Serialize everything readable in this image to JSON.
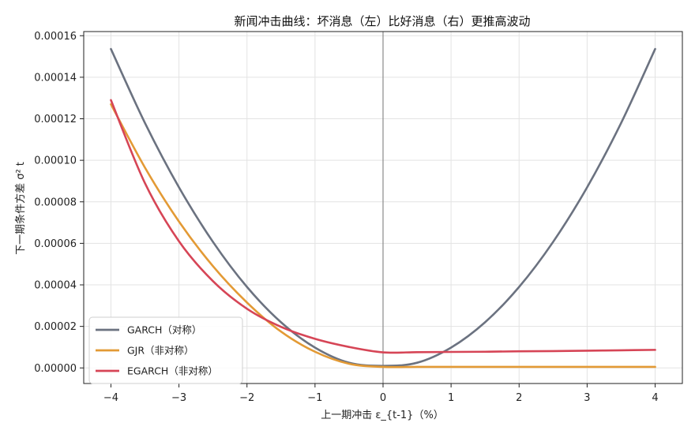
{
  "chart_data": {
    "type": "line",
    "title": "新闻冲击曲线：坏消息（左）比好消息（右）更推高波动",
    "xlabel": "上一期冲击 ε_{t-1}（%）",
    "ylabel": "下一期条件方差 σ² t",
    "xlim": [
      -4.4,
      4.4
    ],
    "ylim": [
      -7.5e-06,
      0.000162
    ],
    "x_ticks": [
      -4,
      -3,
      -2,
      -1,
      0,
      1,
      2,
      3,
      4
    ],
    "x_tick_labels": [
      "−4",
      "−3",
      "−2",
      "−1",
      "0",
      "1",
      "2",
      "3",
      "4"
    ],
    "y_ticks": [
      0,
      2e-05,
      4e-05,
      6e-05,
      8e-05,
      0.0001,
      0.00012,
      0.00014,
      0.00016
    ],
    "y_tick_labels": [
      "0.00000",
      "0.00002",
      "0.00004",
      "0.00006",
      "0.00008",
      "0.00010",
      "0.00012",
      "0.00014",
      "0.00016"
    ],
    "grid": true,
    "legend_position": "lower-left",
    "vline_x": 0,
    "x": [
      -4,
      -3.5,
      -3,
      -2.5,
      -2,
      -1.5,
      -1,
      -0.5,
      0,
      0.5,
      1,
      1.5,
      2,
      2.5,
      3,
      3.5,
      4
    ],
    "series": [
      {
        "name": "GARCH（对称）",
        "color": "#6b7280",
        "values": [
          0.0001536,
          0.000118,
          8.7e-05,
          6.07e-05,
          3.9e-05,
          2.2e-05,
          9.8e-06,
          2.5e-06,
          1e-06,
          2.5e-06,
          9.8e-06,
          2.2e-05,
          3.9e-05,
          6.07e-05,
          8.7e-05,
          0.000118,
          0.0001536
        ]
      },
      {
        "name": "GJR（非对称）",
        "color": "#e39a35",
        "values": [
          0.000127,
          9.65e-05,
          7.05e-05,
          4.9e-05,
          3.15e-05,
          1.75e-05,
          7.8e-06,
          2e-06,
          5e-07,
          5e-07,
          5e-07,
          5e-07,
          5e-07,
          5e-07,
          5e-07,
          5e-07,
          5e-07
        ]
      },
      {
        "name": "EGARCH（非对称）",
        "color": "#d64556",
        "values": [
          0.000129,
          8.9e-05,
          6.1e-05,
          4.18e-05,
          2.85e-05,
          1.98e-05,
          1.4e-05,
          1.01e-05,
          7.5e-06,
          7.6e-06,
          7.7e-06,
          7.8e-06,
          8e-06,
          8.1e-06,
          8.3e-06,
          8.5e-06,
          8.7e-06
        ]
      }
    ]
  }
}
